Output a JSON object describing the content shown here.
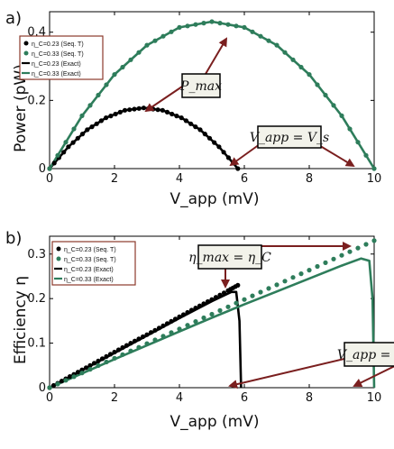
{
  "chart_data": [
    {
      "type": "line",
      "panel_label": "a)",
      "xlabel": "V_app (mV)",
      "ylabel": "Power (pW)",
      "xlim": [
        0,
        10
      ],
      "ylim": [
        0,
        0.46
      ],
      "xticks": [
        "0",
        "2",
        "4",
        "6",
        "8",
        "10"
      ],
      "yticks": [
        "0",
        "0.2",
        "0.4"
      ],
      "legend_position": "top-left",
      "series": [
        {
          "name": "η_C=0.23 (Seq. T)",
          "style": "markers",
          "color": "#000000",
          "x": [
            0,
            0.58,
            1.16,
            1.74,
            2.32,
            2.9,
            3.48,
            4.06,
            4.64,
            5.22,
            5.8
          ],
          "y": [
            0,
            0.064,
            0.114,
            0.149,
            0.171,
            0.178,
            0.171,
            0.149,
            0.114,
            0.064,
            0
          ]
        },
        {
          "name": "η_C=0.33 (Seq. T)",
          "style": "markers",
          "color": "#2e7d5b",
          "x": [
            0,
            1,
            2,
            3,
            4,
            5,
            6,
            7,
            8,
            9,
            10
          ],
          "y": [
            0,
            0.155,
            0.276,
            0.362,
            0.414,
            0.431,
            0.414,
            0.362,
            0.276,
            0.155,
            0
          ]
        },
        {
          "name": "η_C=0.23 (Exact)",
          "style": "line",
          "color": "#000000",
          "x": [
            0,
            0.58,
            1.16,
            1.74,
            2.32,
            2.9,
            3.48,
            4.06,
            4.64,
            5.22,
            5.8
          ],
          "y": [
            0,
            0.064,
            0.114,
            0.149,
            0.171,
            0.178,
            0.171,
            0.149,
            0.114,
            0.064,
            0
          ]
        },
        {
          "name": "η_C=0.33 (Exact)",
          "style": "line",
          "color": "#2e7d5b",
          "x": [
            0,
            1,
            2,
            3,
            4,
            5,
            6,
            7,
            8,
            9,
            10
          ],
          "y": [
            0,
            0.155,
            0.276,
            0.362,
            0.414,
            0.431,
            0.414,
            0.362,
            0.276,
            0.155,
            0
          ]
        }
      ],
      "annotations": [
        "P_max",
        "V_app = V_s"
      ]
    },
    {
      "type": "line",
      "panel_label": "b)",
      "xlabel": "V_app (mV)",
      "ylabel": "Efficiency η",
      "xlim": [
        0,
        10
      ],
      "ylim": [
        0,
        0.34
      ],
      "xticks": [
        "0",
        "2",
        "4",
        "6",
        "8",
        "10"
      ],
      "yticks": [
        "0",
        "0.1",
        "0.2",
        "0.3"
      ],
      "legend_position": "top-left",
      "series": [
        {
          "name": "η_C=0.23 (Seq. T)",
          "style": "markers",
          "color": "#000000",
          "x": [
            0,
            0.5,
            1,
            1.5,
            2,
            2.5,
            3,
            3.5,
            4,
            4.5,
            5,
            5.5,
            5.8
          ],
          "y": [
            0,
            0.02,
            0.04,
            0.06,
            0.08,
            0.1,
            0.119,
            0.139,
            0.159,
            0.179,
            0.198,
            0.218,
            0.23
          ]
        },
        {
          "name": "η_C=0.33 (Seq. T)",
          "style": "markers",
          "color": "#2e7d5b",
          "x": [
            0,
            1,
            2,
            3,
            4,
            5,
            6,
            7,
            8,
            9,
            10
          ],
          "y": [
            0,
            0.033,
            0.066,
            0.099,
            0.132,
            0.165,
            0.198,
            0.231,
            0.264,
            0.297,
            0.33
          ]
        },
        {
          "name": "η_C=0.23 (Exact)",
          "style": "line",
          "color": "#000000",
          "x": [
            0,
            1,
            2,
            3,
            4,
            5,
            5.6,
            5.75,
            5.85,
            5.9
          ],
          "y": [
            0,
            0.039,
            0.078,
            0.117,
            0.156,
            0.194,
            0.215,
            0.215,
            0.15,
            0
          ]
        },
        {
          "name": "η_C=0.33 (Exact)",
          "style": "line",
          "color": "#2e7d5b",
          "x": [
            0,
            1,
            2,
            3,
            4,
            5,
            6,
            7,
            8,
            9,
            9.6,
            9.85,
            9.95,
            10
          ],
          "y": [
            0,
            0.032,
            0.064,
            0.095,
            0.126,
            0.157,
            0.187,
            0.216,
            0.245,
            0.274,
            0.29,
            0.285,
            0.2,
            0
          ]
        }
      ],
      "annotations": [
        "η_max = η_C",
        "V_app = V_s"
      ]
    }
  ]
}
